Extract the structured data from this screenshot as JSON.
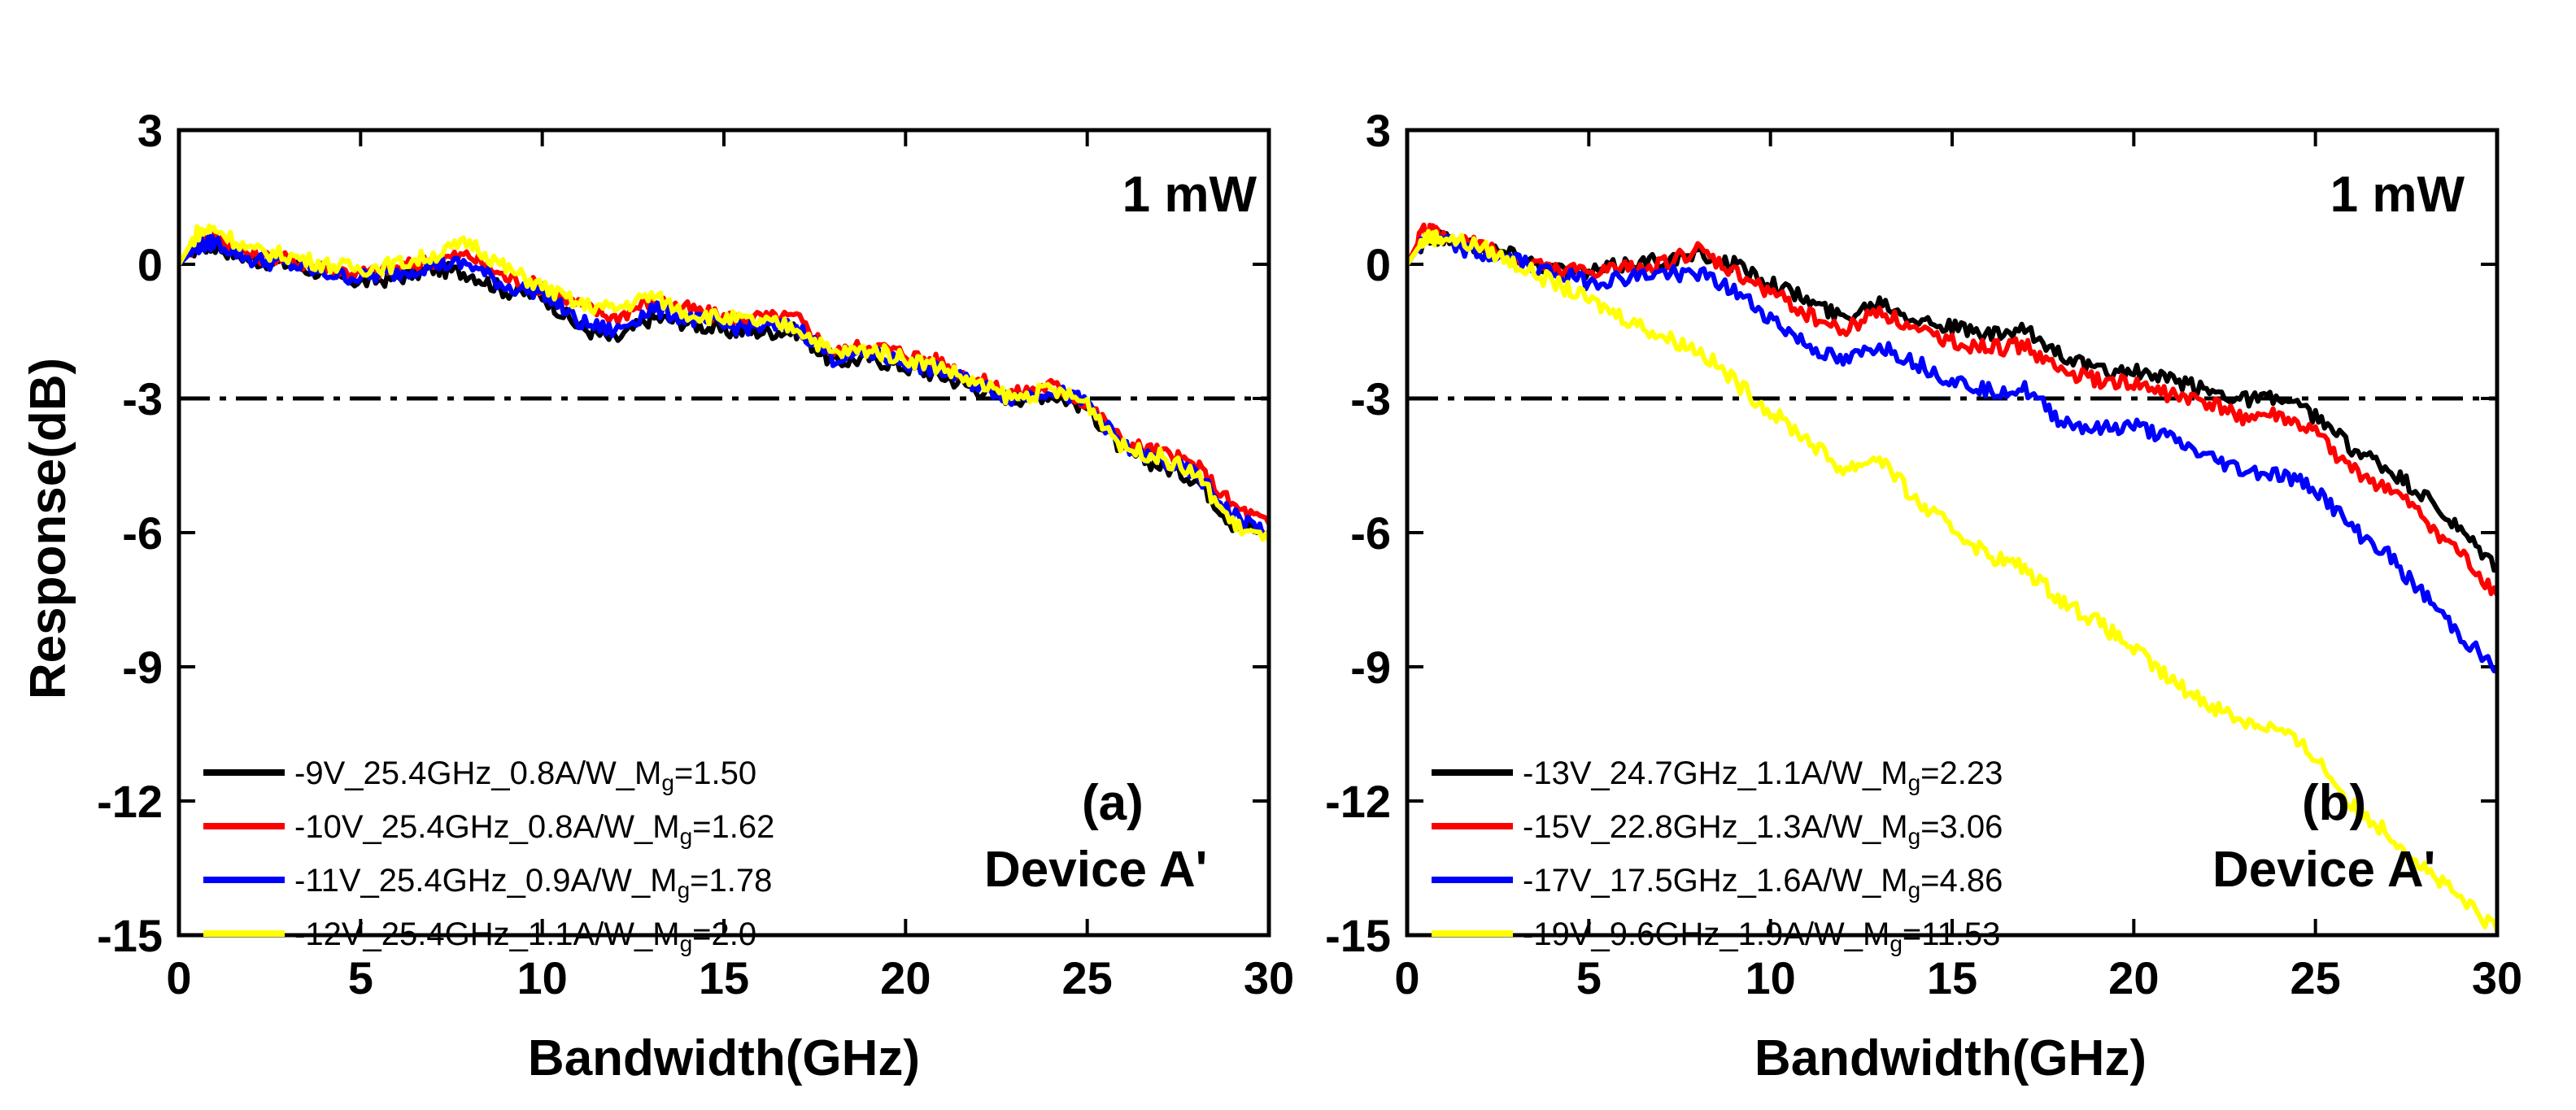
{
  "figure": {
    "ylabel": "Response(dB)"
  },
  "chart_data": [
    {
      "type": "line",
      "panel_label": "(a)",
      "power_label": "1 mW",
      "device_label": "Device A'",
      "xlabel": "Bandwidth(GHz)",
      "ylabel": "Response(dB)",
      "xlim": [
        0,
        30
      ],
      "ylim": [
        -15,
        3
      ],
      "xticks": [
        "0",
        "5",
        "10",
        "15",
        "20",
        "25",
        "30"
      ],
      "yticks": [
        "3",
        "0",
        "-3",
        "-6",
        "-9",
        "-12",
        "-15"
      ],
      "reference_line": {
        "y": -3,
        "style": "dash-dot",
        "color": "#000000"
      },
      "legend": {
        "position": "bottom-left"
      },
      "series": [
        {
          "name": "-9V_25.4GHz_0.8A/W_M",
          "sub": "g",
          "suffix": "=1.50",
          "color": "#000000",
          "x": [
            0,
            0.5,
            1,
            2,
            3,
            4,
            5,
            6,
            7,
            8,
            9,
            10,
            11,
            12,
            13,
            14,
            15,
            16,
            17,
            18,
            19,
            20,
            21,
            22,
            23,
            24,
            25,
            26,
            27,
            28,
            29,
            30
          ],
          "y": [
            0,
            0.4,
            0.4,
            0.1,
            0,
            -0.2,
            -0.4,
            -0.3,
            -0.1,
            -0.2,
            -0.6,
            -0.7,
            -1.4,
            -1.7,
            -1.2,
            -1.3,
            -1.5,
            -1.5,
            -1.5,
            -2.2,
            -2.1,
            -2.3,
            -2.5,
            -2.8,
            -3.0,
            -2.9,
            -3.2,
            -4.2,
            -4.5,
            -4.8,
            -5.8,
            -6.0
          ]
        },
        {
          "name": "-10V_25.4GHz_0.8A/W_M",
          "sub": "g",
          "suffix": "=1.62",
          "color": "#ff0000",
          "x": [
            0,
            0.5,
            1,
            2,
            3,
            4,
            5,
            6,
            7,
            8,
            9,
            10,
            11,
            12,
            13,
            14,
            15,
            16,
            17,
            18,
            19,
            20,
            21,
            22,
            23,
            24,
            25,
            26,
            27,
            28,
            29,
            30
          ],
          "y": [
            0,
            0.5,
            0.6,
            0.2,
            0.1,
            -0.1,
            -0.2,
            -0.1,
            0.1,
            0.2,
            -0.3,
            -0.5,
            -0.9,
            -1.2,
            -0.8,
            -1.0,
            -1.2,
            -1.2,
            -1.2,
            -2.0,
            -1.8,
            -2.0,
            -2.2,
            -2.6,
            -2.9,
            -2.7,
            -3.1,
            -4.0,
            -4.2,
            -4.5,
            -5.4,
            -5.8
          ]
        },
        {
          "name": "-11V_25.4GHz_0.9A/W_M",
          "sub": "g",
          "suffix": "=1.78",
          "color": "#0000ff",
          "x": [
            0,
            0.5,
            1,
            2,
            3,
            4,
            5,
            6,
            7,
            8,
            9,
            10,
            11,
            12,
            13,
            14,
            15,
            16,
            17,
            18,
            19,
            20,
            21,
            22,
            23,
            24,
            25,
            26,
            27,
            28,
            29,
            30
          ],
          "y": [
            0,
            0.4,
            0.5,
            0.1,
            0,
            -0.2,
            -0.3,
            -0.2,
            0,
            0,
            -0.5,
            -0.6,
            -1.3,
            -1.5,
            -1.0,
            -1.2,
            -1.4,
            -1.4,
            -1.4,
            -2.1,
            -2.0,
            -2.2,
            -2.4,
            -2.7,
            -3.0,
            -2.8,
            -3.1,
            -4.1,
            -4.4,
            -4.7,
            -5.6,
            -6.0
          ]
        },
        {
          "name": "-12V_25.4GHz_1.1A/W_M",
          "sub": "g",
          "suffix": "=2.0",
          "color": "#ffff00",
          "x": [
            0,
            0.5,
            1,
            2,
            3,
            4,
            5,
            6,
            7,
            8,
            9,
            10,
            11,
            12,
            13,
            14,
            15,
            16,
            17,
            18,
            19,
            20,
            21,
            22,
            23,
            24,
            25,
            26,
            27,
            28,
            29,
            30
          ],
          "y": [
            0,
            0.7,
            0.8,
            0.3,
            0.2,
            0,
            -0.1,
            0,
            0.2,
            0.5,
            -0.1,
            -0.5,
            -0.9,
            -1.0,
            -0.7,
            -1.1,
            -1.2,
            -1.3,
            -1.4,
            -2.0,
            -1.9,
            -2.1,
            -2.3,
            -2.7,
            -3.0,
            -2.8,
            -3.1,
            -4.1,
            -4.3,
            -4.7,
            -5.8,
            -6.2
          ]
        }
      ]
    },
    {
      "type": "line",
      "panel_label": "(b)",
      "power_label": "1 mW",
      "device_label": "Device A'",
      "xlabel": "Bandwidth(GHz)",
      "ylabel": "Response(dB)",
      "xlim": [
        0,
        30
      ],
      "ylim": [
        -15,
        3
      ],
      "xticks": [
        "0",
        "5",
        "10",
        "15",
        "20",
        "25",
        "30"
      ],
      "yticks": [
        "3",
        "0",
        "-3",
        "-6",
        "-9",
        "-12",
        "-15"
      ],
      "reference_line": {
        "y": -3,
        "style": "dash-dot",
        "color": "#000000"
      },
      "legend": {
        "position": "bottom-left"
      },
      "series": [
        {
          "name": "-13V_24.7GHz_1.1A/W_M",
          "sub": "g",
          "suffix": "=2.23",
          "color": "#000000",
          "x": [
            0,
            0.5,
            1,
            2,
            3,
            4,
            5,
            6,
            7,
            8,
            9,
            10,
            11,
            12,
            13,
            14,
            15,
            16,
            17,
            18,
            19,
            20,
            21,
            22,
            23,
            24,
            25,
            26,
            27,
            28,
            29,
            30
          ],
          "y": [
            0,
            0.6,
            0.6,
            0.4,
            0.2,
            -0.1,
            -0.2,
            0,
            0.1,
            0.2,
            0,
            -0.4,
            -0.8,
            -1.2,
            -0.8,
            -1.2,
            -1.4,
            -1.6,
            -1.5,
            -2.0,
            -2.4,
            -2.4,
            -2.6,
            -2.8,
            -3.0,
            -3.0,
            -3.4,
            -4.1,
            -4.6,
            -5.2,
            -6.0,
            -6.8
          ]
        },
        {
          "name": "-15V_22.8GHz_1.3A/W_M",
          "sub": "g",
          "suffix": "=3.06",
          "color": "#ff0000",
          "x": [
            0,
            0.5,
            1,
            2,
            3,
            4,
            5,
            6,
            7,
            8,
            9,
            10,
            11,
            12,
            13,
            14,
            15,
            16,
            17,
            18,
            19,
            20,
            21,
            22,
            23,
            24,
            25,
            26,
            27,
            28,
            29,
            30
          ],
          "y": [
            0,
            0.8,
            0.6,
            0.4,
            0.1,
            -0.1,
            -0.2,
            -0.1,
            0,
            0.3,
            -0.2,
            -0.6,
            -1.1,
            -1.5,
            -1.0,
            -1.5,
            -1.7,
            -1.9,
            -1.8,
            -2.4,
            -2.6,
            -2.7,
            -2.9,
            -3.1,
            -3.4,
            -3.4,
            -3.8,
            -4.6,
            -5.0,
            -5.7,
            -6.5,
            -7.4
          ]
        },
        {
          "name": "-17V_17.5GHz_1.6A/W_M",
          "sub": "g",
          "suffix": "=4.86",
          "color": "#0000ff",
          "x": [
            0,
            0.5,
            1,
            2,
            3,
            4,
            5,
            6,
            7,
            8,
            9,
            10,
            11,
            12,
            13,
            14,
            15,
            16,
            17,
            18,
            19,
            20,
            21,
            22,
            23,
            24,
            25,
            26,
            27,
            28,
            29,
            30
          ],
          "y": [
            0,
            0.6,
            0.5,
            0.2,
            0.1,
            -0.2,
            -0.4,
            -0.3,
            -0.2,
            -0.2,
            -0.6,
            -1.2,
            -1.8,
            -2.2,
            -1.8,
            -2.2,
            -2.6,
            -2.8,
            -2.8,
            -3.5,
            -3.7,
            -3.6,
            -3.9,
            -4.3,
            -4.6,
            -4.7,
            -5.0,
            -5.9,
            -6.5,
            -7.4,
            -8.3,
            -9.1
          ]
        },
        {
          "name": "-19V_9.6GHz_1.9A/W_M",
          "sub": "g",
          "suffix": "=11.53",
          "color": "#ffff00",
          "x": [
            0,
            0.5,
            1,
            2,
            3,
            4,
            5,
            6,
            7,
            8,
            9,
            10,
            11,
            12,
            13,
            14,
            15,
            16,
            17,
            18,
            19,
            20,
            21,
            22,
            23,
            24,
            25,
            26,
            27,
            28,
            29,
            30
          ],
          "y": [
            0,
            0.6,
            0.6,
            0.4,
            0,
            -0.4,
            -0.8,
            -1.2,
            -1.6,
            -1.9,
            -2.6,
            -3.3,
            -3.9,
            -4.6,
            -4.3,
            -5.3,
            -5.9,
            -6.5,
            -6.8,
            -7.5,
            -8.0,
            -8.6,
            -9.3,
            -9.8,
            -10.2,
            -10.4,
            -11.0,
            -12.1,
            -12.7,
            -13.5,
            -14.2,
            -14.9
          ]
        }
      ]
    }
  ]
}
